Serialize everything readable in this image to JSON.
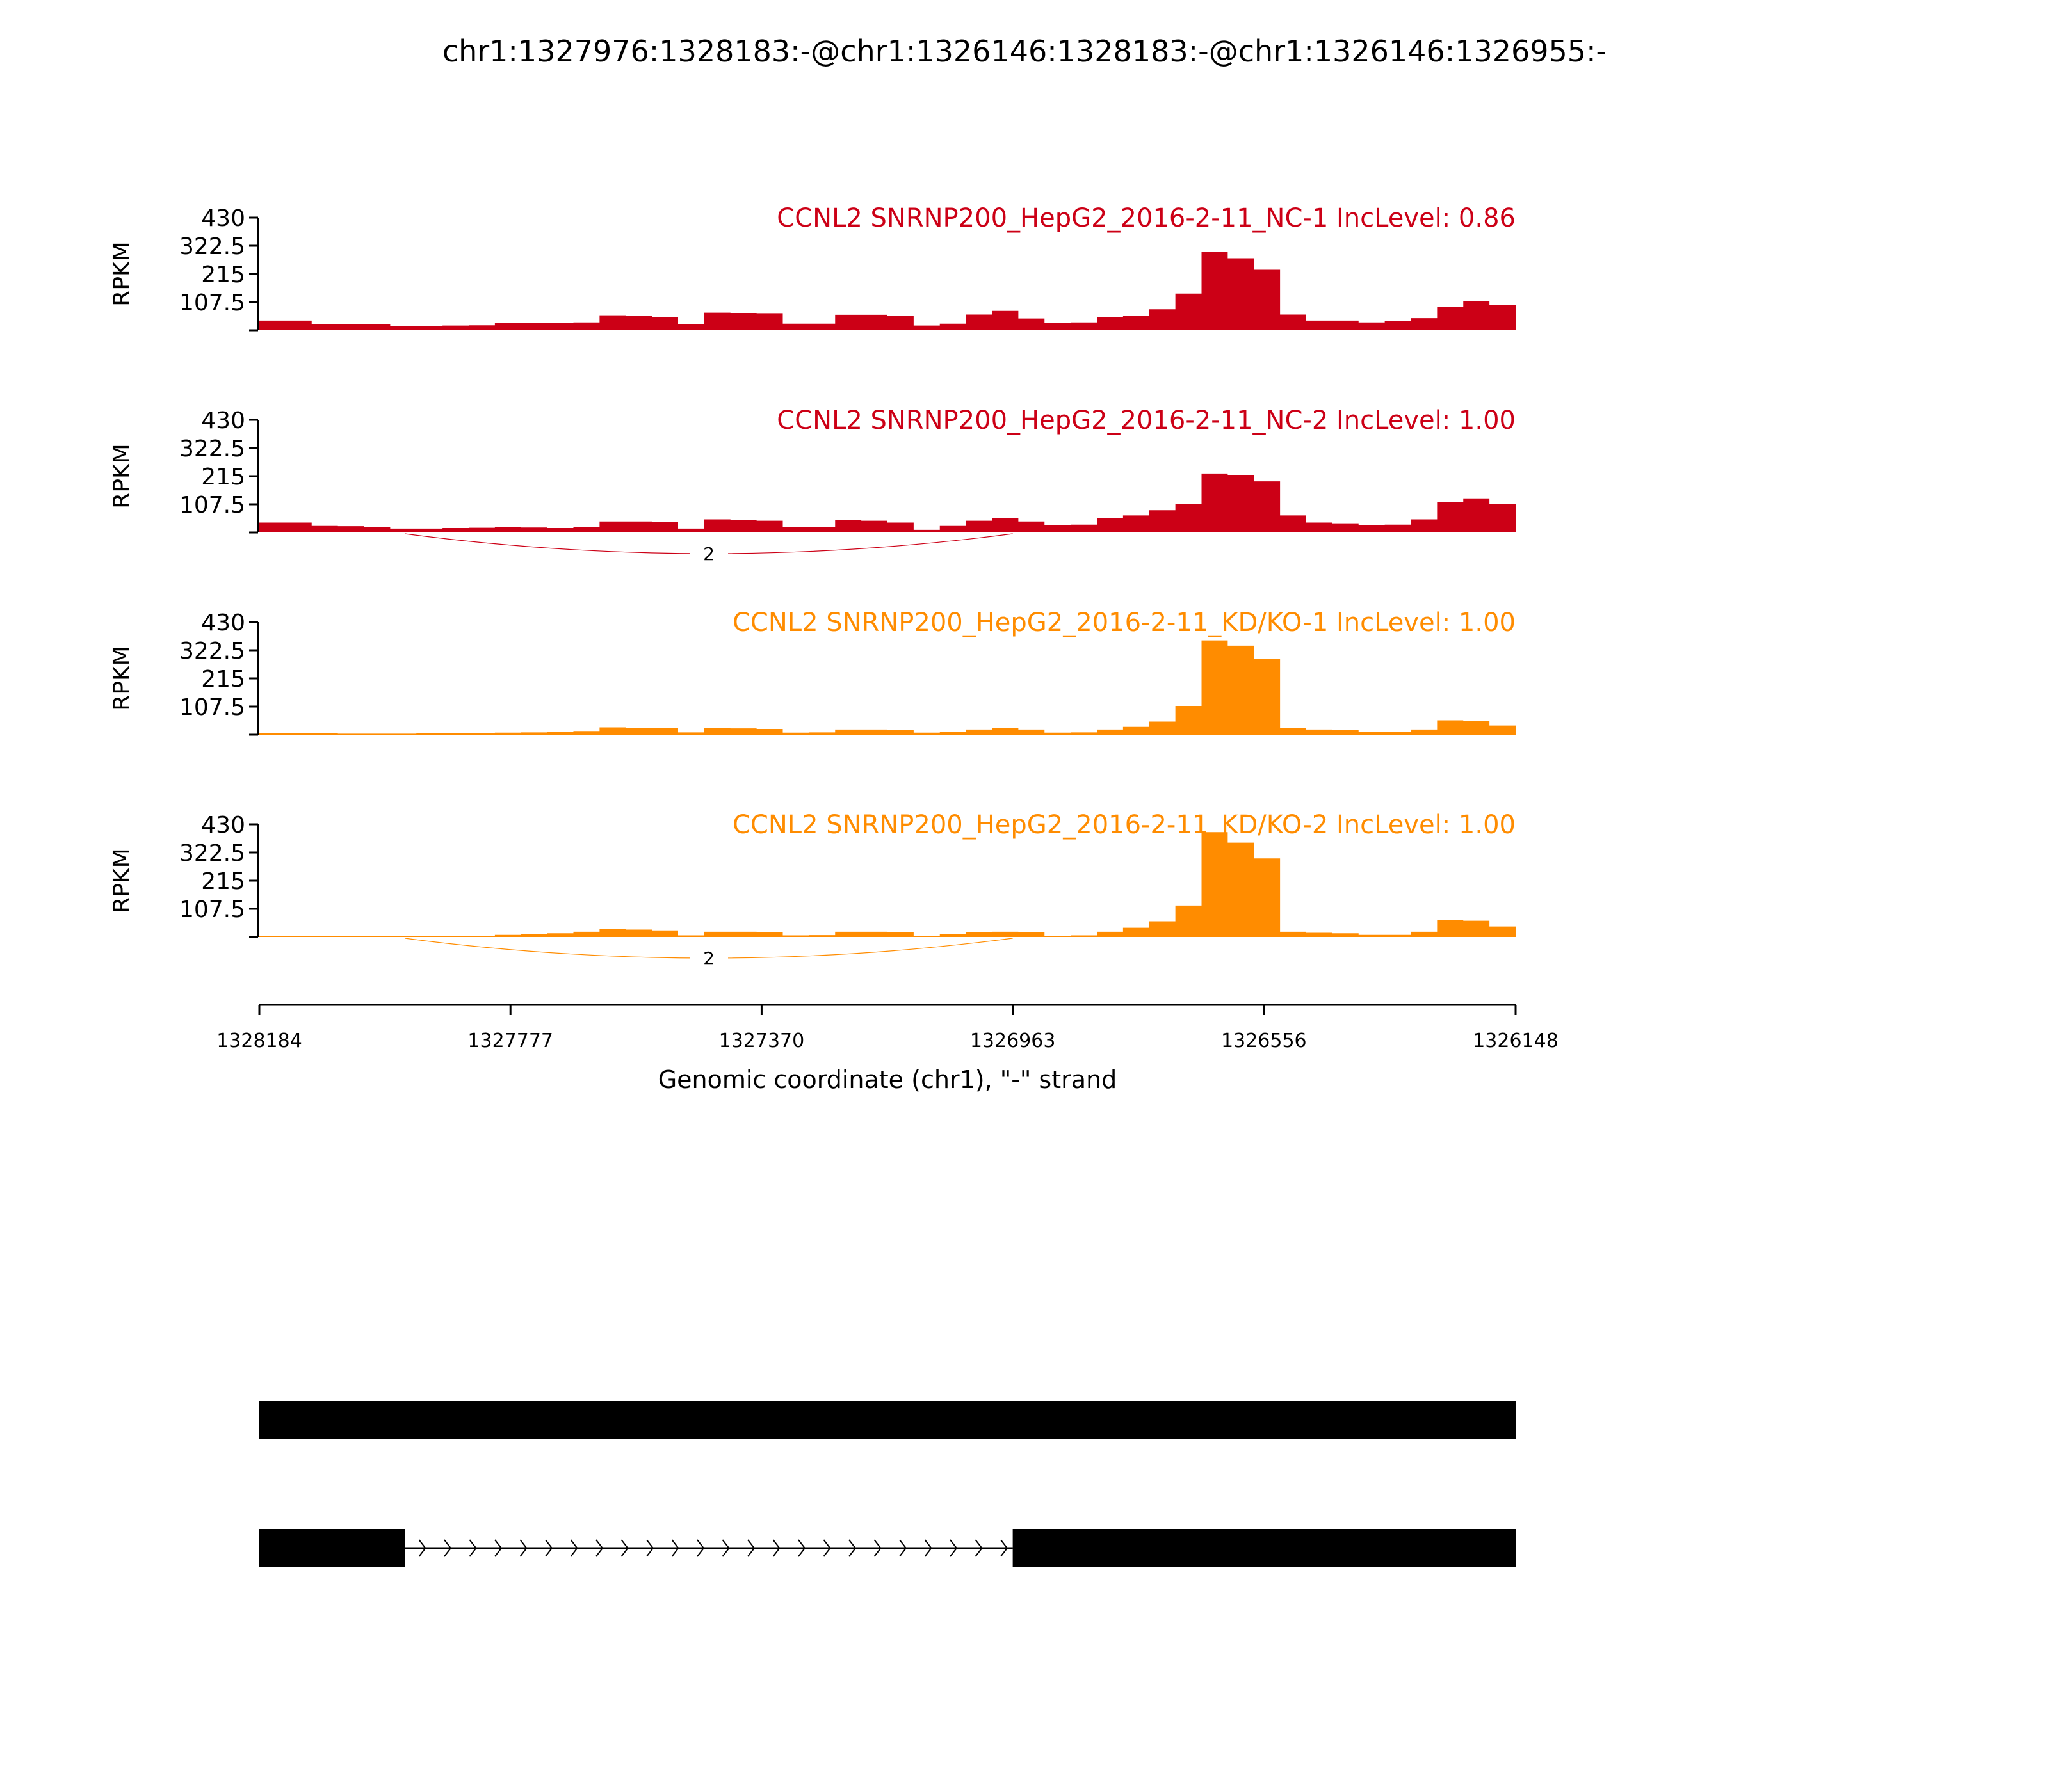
{
  "chart_data": {
    "type": "area",
    "title": "chr1:1327976:1328183:-@chr1:1326146:1328183:-@chr1:1326146:1326955:-",
    "xlabel": "Genomic coordinate (chr1), \"-\" strand",
    "ylabel": "RPKM",
    "xlim": [
      1328184,
      1326148
    ],
    "x_ticks": [
      "1328184",
      "1327777",
      "1327370",
      "1326963",
      "1326556",
      "1326148"
    ],
    "ylim": [
      0,
      430
    ],
    "y_ticks": [
      "107.5",
      "215",
      "322.5",
      "430"
    ],
    "bins": 48,
    "series": [
      {
        "name": "CCNL2 SNRNP200_HepG2_2016-2-11_NC-1 IncLevel: 0.86",
        "color": "#cc0016",
        "values": [
          37,
          37,
          23,
          23,
          22,
          17,
          17,
          18,
          19,
          28,
          28,
          28,
          30,
          57,
          55,
          50,
          23,
          67,
          66,
          65,
          25,
          25,
          59,
          59,
          55,
          18,
          25,
          60,
          74,
          45,
          28,
          30,
          51,
          55,
          80,
          140,
          300,
          275,
          231,
          60,
          37,
          37,
          30,
          35,
          46,
          90,
          111,
          97
        ],
        "junctions": []
      },
      {
        "name": "CCNL2 SNRNP200_HepG2_2016-2-11_NC-2 IncLevel: 1.00",
        "color": "#cc0016",
        "values": [
          38,
          38,
          25,
          24,
          22,
          15,
          15,
          17,
          18,
          20,
          19,
          17,
          22,
          42,
          42,
          40,
          15,
          50,
          48,
          45,
          20,
          22,
          48,
          45,
          38,
          10,
          25,
          45,
          55,
          42,
          28,
          30,
          55,
          65,
          85,
          110,
          225,
          220,
          195,
          65,
          38,
          35,
          28,
          30,
          50,
          115,
          130,
          110
        ],
        "junctions": [
          {
            "from": 1327948,
            "to": 1326963,
            "count": "2"
          }
        ]
      },
      {
        "name": "CCNL2 SNRNP200_HepG2_2016-2-11_KD/KO-1 IncLevel: 1.00",
        "color": "#ff8c00",
        "values": [
          5,
          5,
          5,
          4,
          4,
          4,
          5,
          5,
          6,
          8,
          9,
          10,
          14,
          28,
          27,
          25,
          9,
          25,
          24,
          22,
          8,
          9,
          20,
          20,
          18,
          8,
          12,
          20,
          25,
          20,
          8,
          9,
          20,
          30,
          50,
          110,
          360,
          340,
          290,
          25,
          20,
          18,
          12,
          12,
          20,
          55,
          52,
          35
        ],
        "junctions": []
      },
      {
        "name": "CCNL2 SNRNP200_HepG2_2016-2-11_KD/KO-2 IncLevel: 1.00",
        "color": "#ff8c00",
        "values": [
          3,
          3,
          3,
          3,
          3,
          3,
          3,
          4,
          5,
          8,
          10,
          14,
          20,
          30,
          28,
          25,
          6,
          20,
          20,
          18,
          6,
          7,
          20,
          20,
          18,
          4,
          10,
          18,
          20,
          18,
          5,
          6,
          20,
          35,
          60,
          120,
          400,
          360,
          300,
          20,
          16,
          14,
          8,
          8,
          20,
          65,
          62,
          40
        ],
        "junctions": [
          {
            "from": 1327948,
            "to": 1326963,
            "count": "2"
          }
        ]
      }
    ],
    "transcripts": [
      {
        "exons": [
          [
            1328184,
            1326148
          ]
        ]
      },
      {
        "exons": [
          [
            1328184,
            1327948
          ],
          [
            1326963,
            1326148
          ]
        ],
        "strand_arrows": ">"
      }
    ]
  }
}
